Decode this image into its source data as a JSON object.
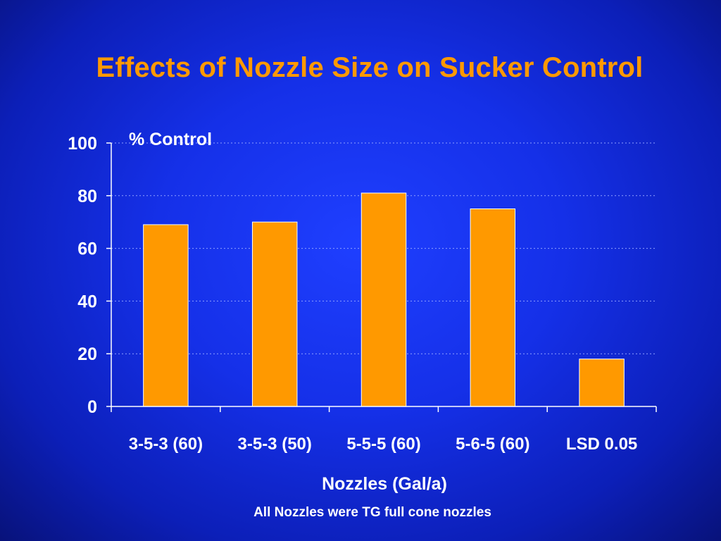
{
  "slide": {
    "title": "Effects of Nozzle Size on Sucker Control",
    "footnote": "All Nozzles were TG full cone nozzles"
  },
  "colors": {
    "background": "#1530e8",
    "title": "#ff9900",
    "bar_fill": "#ff9900",
    "bar_stroke": "#ffffff",
    "grid": "#8fa0ff",
    "axis": "#ffffff",
    "text": "#ffffff"
  },
  "chart_data": {
    "type": "bar",
    "title": "",
    "xlabel": "Nozzles (Gal/a)",
    "ylabel": "% Control",
    "categories": [
      "3-5-3 (60)",
      "3-5-3 (50)",
      "5-5-5 (60)",
      "5-6-5 (60)",
      "LSD 0.05"
    ],
    "values": [
      69,
      70,
      81,
      75,
      18
    ],
    "ylim": [
      0,
      100
    ],
    "yticks": [
      0,
      20,
      40,
      60,
      80,
      100
    ],
    "grid": true,
    "grid_style": "dotted horizontal",
    "legend": "none"
  }
}
